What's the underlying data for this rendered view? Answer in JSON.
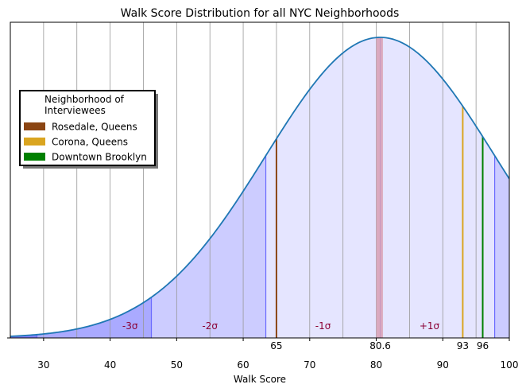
{
  "chart_data": {
    "type": "area",
    "title": "Walk Score Distribution for all NYC Neighborhoods",
    "xlabel": "Walk Score",
    "ylabel": "",
    "xlim": [
      25,
      100
    ],
    "x_ticks": [
      30,
      40,
      50,
      60,
      70,
      80,
      90,
      100
    ],
    "grid_x": [
      25,
      30,
      35,
      40,
      45,
      50,
      55,
      60,
      65,
      70,
      75,
      80,
      85,
      90,
      95,
      100
    ],
    "distribution": {
      "mean": 80.6,
      "sd": 17.2
    },
    "sigma_bands": [
      {
        "label": "-3σ",
        "from": 25,
        "to": 29,
        "shade": "dark"
      },
      {
        "label": "-3σ",
        "from": 29,
        "to": 46.2,
        "shade": "medium"
      },
      {
        "label": "-2σ",
        "from": 46.2,
        "to": 63.4,
        "shade": "light"
      },
      {
        "label": "-1σ",
        "from": 63.4,
        "to": 80.6,
        "shade": "lighter"
      },
      {
        "label": "+1σ",
        "from": 80.6,
        "to": 97.8,
        "shade": "lighter"
      },
      {
        "label": "",
        "from": 97.8,
        "to": 100,
        "shade": "light"
      }
    ],
    "sigma_text": [
      {
        "label": "-3σ",
        "x": 43
      },
      {
        "label": "-2σ",
        "x": 55
      },
      {
        "label": "-1σ",
        "x": 72
      },
      {
        "label": "+1σ",
        "x": 88
      }
    ],
    "mean_band": {
      "from": 80,
      "to": 81,
      "color": "#d9a0b4"
    },
    "markers": [
      {
        "name": "Rosedale, Queens",
        "x": 65,
        "label": "65",
        "color": "#8b4513"
      },
      {
        "name": "Corona, Queens",
        "x": 93,
        "label": "93",
        "color": "#daa520"
      },
      {
        "name": "Downtown Brooklyn",
        "x": 96,
        "label": "96",
        "color": "#008000"
      }
    ],
    "mean_label": {
      "x": 80.6,
      "label": "80.6"
    },
    "legend": {
      "title": "Neighborhood of\nInterviewees",
      "position": "upper-left",
      "entries": [
        {
          "label": "Rosedale, Queens",
          "color": "#8b4513"
        },
        {
          "label": "Corona, Queens",
          "color": "#daa520"
        },
        {
          "label": "Downtown Brooklyn",
          "color": "#008000"
        }
      ]
    },
    "curve_color": "#1f77b4"
  }
}
